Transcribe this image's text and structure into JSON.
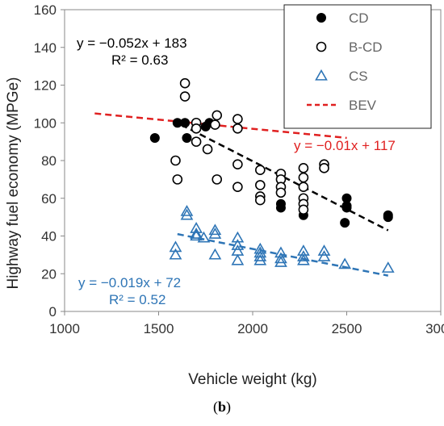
{
  "chart_data": {
    "type": "scatter",
    "xlabel": "Vehicle weight (kg)",
    "ylabel": "Highway fuel economy (MPGe)",
    "xlim": [
      1000,
      3000
    ],
    "ylim": [
      0,
      160
    ],
    "xticks": [
      1000,
      1500,
      2000,
      2500,
      3000
    ],
    "yticks": [
      0,
      20,
      40,
      60,
      80,
      100,
      120,
      140,
      160
    ],
    "grid": false,
    "legend_position": "top-right",
    "series": [
      {
        "name": "CD",
        "marker": "filled-circle",
        "color": "#000000",
        "points": [
          [
            1480,
            92
          ],
          [
            1600,
            100
          ],
          [
            1640,
            100
          ],
          [
            1650,
            92
          ],
          [
            1700,
            97
          ],
          [
            1750,
            98
          ],
          [
            1770,
            100
          ],
          [
            2150,
            57
          ],
          [
            2150,
            55
          ],
          [
            2270,
            51
          ],
          [
            2500,
            60
          ],
          [
            2500,
            56
          ],
          [
            2500,
            55
          ],
          [
            2490,
            47
          ],
          [
            2720,
            51
          ],
          [
            2720,
            50
          ]
        ]
      },
      {
        "name": "B-CD",
        "marker": "open-circle",
        "color": "#000000",
        "points": [
          [
            1590,
            80
          ],
          [
            1600,
            70
          ],
          [
            1640,
            121
          ],
          [
            1640,
            114
          ],
          [
            1700,
            100
          ],
          [
            1700,
            97
          ],
          [
            1700,
            90
          ],
          [
            1760,
            86
          ],
          [
            1800,
            99
          ],
          [
            1810,
            104
          ],
          [
            1810,
            70
          ],
          [
            1920,
            102
          ],
          [
            1920,
            97
          ],
          [
            1920,
            78
          ],
          [
            1920,
            66
          ],
          [
            2040,
            75
          ],
          [
            2040,
            67
          ],
          [
            2040,
            61
          ],
          [
            2040,
            59
          ],
          [
            2150,
            73
          ],
          [
            2150,
            70
          ],
          [
            2150,
            66
          ],
          [
            2150,
            63
          ],
          [
            2270,
            76
          ],
          [
            2270,
            71
          ],
          [
            2270,
            66
          ],
          [
            2270,
            60
          ],
          [
            2270,
            57
          ],
          [
            2270,
            54
          ],
          [
            2380,
            78
          ],
          [
            2380,
            76
          ]
        ]
      },
      {
        "name": "CS",
        "marker": "open-triangle",
        "color": "#2e75b6",
        "points": [
          [
            1590,
            34
          ],
          [
            1590,
            30
          ],
          [
            1650,
            53
          ],
          [
            1650,
            51
          ],
          [
            1700,
            44
          ],
          [
            1700,
            41
          ],
          [
            1700,
            40
          ],
          [
            1740,
            39
          ],
          [
            1800,
            43
          ],
          [
            1800,
            41
          ],
          [
            1800,
            30
          ],
          [
            1920,
            39
          ],
          [
            1920,
            35
          ],
          [
            1920,
            32
          ],
          [
            1920,
            27
          ],
          [
            2040,
            33
          ],
          [
            2040,
            31
          ],
          [
            2040,
            29
          ],
          [
            2040,
            27
          ],
          [
            2150,
            31
          ],
          [
            2150,
            28
          ],
          [
            2150,
            26
          ],
          [
            2270,
            32
          ],
          [
            2270,
            29
          ],
          [
            2270,
            27
          ],
          [
            2380,
            32
          ],
          [
            2380,
            29
          ],
          [
            2490,
            25
          ],
          [
            2720,
            23
          ]
        ]
      }
    ],
    "trendlines": [
      {
        "series": "CD, B-CD",
        "color": "#000000",
        "x": [
          1620,
          2720
        ],
        "y": [
          99,
          43
        ]
      },
      {
        "series": "CS",
        "color": "#2e75b6",
        "x": [
          1600,
          2720
        ],
        "y": [
          41,
          19
        ]
      },
      {
        "series": "BEV",
        "color": "#e02020",
        "x": [
          1160,
          2500
        ],
        "y": [
          105,
          92
        ]
      }
    ],
    "legend": [
      {
        "name": "CD",
        "marker": "filled-circle",
        "color": "#000000",
        "text_color": "#666666"
      },
      {
        "name": "B-CD",
        "marker": "open-circle",
        "color": "#000000",
        "text_color": "#666666"
      },
      {
        "name": "CS",
        "marker": "open-triangle",
        "color": "#2e75b6",
        "text_color": "#666666"
      },
      {
        "name": "BEV",
        "marker": "dashed-line",
        "color": "#e02020",
        "text_color": "#666666"
      }
    ],
    "annotations": [
      {
        "id": "cd-eq",
        "text": "y = −0.052x + 183",
        "color": "#000000"
      },
      {
        "id": "cd-r2",
        "text": "R² = 0.63",
        "color": "#000000"
      },
      {
        "id": "bev-eq",
        "text": "y = −0.01x + 117",
        "color": "#e02020"
      },
      {
        "id": "cs-eq",
        "text": "y = −0.019x + 72",
        "color": "#2e75b6"
      },
      {
        "id": "cs-r2",
        "text": "R² = 0.52",
        "color": "#2e75b6"
      }
    ]
  },
  "caption": {
    "open": "(",
    "letter": "b",
    "close": ")"
  }
}
